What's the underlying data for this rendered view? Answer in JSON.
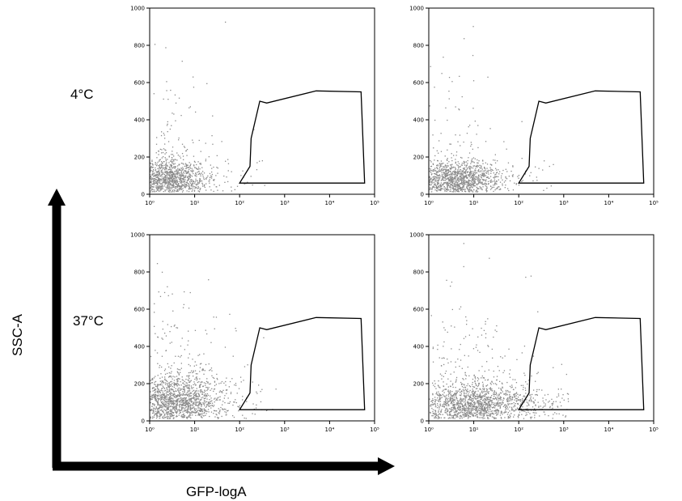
{
  "figure": {
    "row_labels": [
      "4°C",
      "37°C"
    ],
    "x_axis_title": "GFP-logA",
    "y_axis_title": "SSC-A",
    "colors": {
      "dots": "#8a8a8a",
      "frame": "#000000",
      "gate": "#000000",
      "arrow": "#000000"
    }
  },
  "chart_data": [
    {
      "type": "scatter",
      "panel": "4°C left",
      "xscale": "log",
      "xlim": [
        1,
        100000
      ],
      "ylim": [
        0,
        1000
      ],
      "x_ticks": [
        "10⁰",
        "10¹",
        "10²",
        "10³",
        "10⁴",
        "10⁵"
      ],
      "y_ticks": [
        "0",
        "200",
        "400",
        "600",
        "800",
        "1000"
      ],
      "density": {
        "x_center": 2.5,
        "x_spread": 0.45,
        "y_center": 80,
        "y_spread": 60,
        "count": 1500,
        "tail_x": 0.2,
        "tail_y": 0.35
      },
      "gate": [
        [
          100,
          60
        ],
        [
          170,
          150
        ],
        [
          180,
          300
        ],
        [
          280,
          500
        ],
        [
          400,
          490
        ],
        [
          5000,
          555
        ],
        [
          50000,
          550
        ],
        [
          60000,
          60
        ]
      ]
    },
    {
      "type": "scatter",
      "panel": "4°C right",
      "xscale": "log",
      "xlim": [
        1,
        100000
      ],
      "ylim": [
        0,
        1000
      ],
      "x_ticks": [
        "10⁰",
        "10¹",
        "10²",
        "10³",
        "10⁴",
        "10⁵"
      ],
      "y_ticks": [
        "0",
        "200",
        "400",
        "600",
        "800",
        "1000"
      ],
      "density": {
        "x_center": 4,
        "x_spread": 0.5,
        "y_center": 75,
        "y_spread": 55,
        "count": 1500,
        "tail_x": 0.25,
        "tail_y": 0.3
      },
      "gate": [
        [
          100,
          60
        ],
        [
          170,
          150
        ],
        [
          180,
          300
        ],
        [
          280,
          500
        ],
        [
          400,
          490
        ],
        [
          5000,
          555
        ],
        [
          50000,
          550
        ],
        [
          60000,
          60
        ]
      ]
    },
    {
      "type": "scatter",
      "panel": "37°C left",
      "xscale": "log",
      "xlim": [
        1,
        100000
      ],
      "ylim": [
        0,
        1000
      ],
      "x_ticks": [
        "10⁰",
        "10¹",
        "10²",
        "10³",
        "10⁴",
        "10⁵"
      ],
      "y_ticks": [
        "0",
        "200",
        "400",
        "600",
        "800",
        "1000"
      ],
      "density": {
        "x_center": 3.5,
        "x_spread": 0.55,
        "y_center": 95,
        "y_spread": 80,
        "count": 2000,
        "tail_x": 0.25,
        "tail_y": 0.45
      },
      "gate": [
        [
          100,
          60
        ],
        [
          170,
          150
        ],
        [
          180,
          300
        ],
        [
          280,
          500
        ],
        [
          400,
          490
        ],
        [
          5000,
          555
        ],
        [
          50000,
          550
        ],
        [
          60000,
          60
        ]
      ]
    },
    {
      "type": "scatter",
      "panel": "37°C right",
      "xscale": "log",
      "xlim": [
        1,
        100000
      ],
      "ylim": [
        0,
        1000
      ],
      "x_ticks": [
        "10⁰",
        "10¹",
        "10²",
        "10³",
        "10⁴",
        "10⁵"
      ],
      "y_ticks": [
        "0",
        "200",
        "400",
        "600",
        "800",
        "1000"
      ],
      "density": {
        "x_center": 8,
        "x_spread": 0.7,
        "y_center": 80,
        "y_spread": 65,
        "count": 2000,
        "tail_x": 0.6,
        "tail_y": 0.5
      },
      "gate": [
        [
          100,
          60
        ],
        [
          170,
          150
        ],
        [
          180,
          300
        ],
        [
          280,
          500
        ],
        [
          400,
          490
        ],
        [
          5000,
          555
        ],
        [
          50000,
          550
        ],
        [
          60000,
          60
        ]
      ]
    }
  ]
}
